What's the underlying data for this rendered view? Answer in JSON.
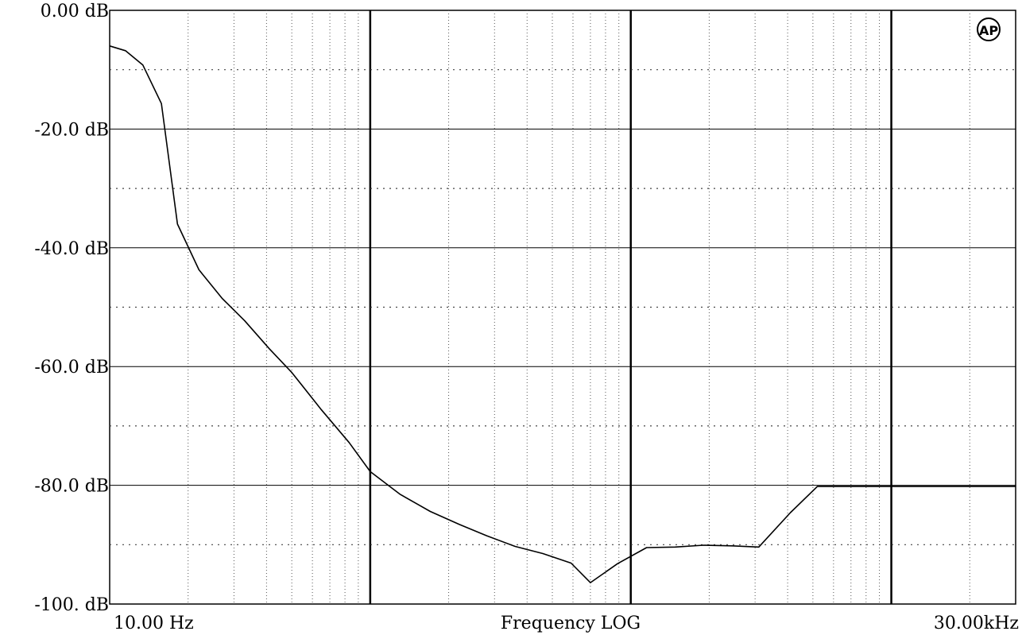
{
  "chart_data": {
    "type": "line",
    "title": "",
    "xlabel": "Frequency LOG",
    "ylabel": "",
    "x_scale": "log",
    "xlim_hz": [
      10,
      30000
    ],
    "ylim_db": [
      -100,
      0
    ],
    "x_tick_labels": [
      "10.00 Hz",
      "30.00kHz"
    ],
    "y_tick_labels": [
      "0.00 dB",
      "-20.0 dB",
      "-40.0 dB",
      "-60.0 dB",
      "-80.0 dB",
      "-100. dB"
    ],
    "y_ticks": [
      0,
      -20,
      -40,
      -60,
      -80,
      -100
    ],
    "grid": "on",
    "logo": "AP",
    "series": [
      {
        "x": [
          10,
          11.5,
          13.4,
          15.8,
          18.2,
          22,
          27,
          33,
          41,
          50,
          65,
          83,
          100,
          130,
          170,
          220,
          280,
          360,
          460,
          590,
          700,
          890,
          1150,
          1480,
          1900,
          2450,
          3100,
          4100,
          5200,
          6800,
          8600,
          11100,
          14300,
          18300,
          22000,
          26000,
          30000
        ],
        "y": [
          -6,
          -6.8,
          -9.2,
          -15.7,
          -36,
          -43.7,
          -48.5,
          -52.3,
          -57,
          -61,
          -67.3,
          -72.8,
          -77.7,
          -81.5,
          -84.4,
          -86.6,
          -88.5,
          -90.3,
          -91.5,
          -93.1,
          -96.4,
          -93.2,
          -90.5,
          -90.4,
          -90.1,
          -90.2,
          -90.4,
          -84.6,
          -80.2,
          -80.2,
          -80.2,
          -80.2,
          -80.2,
          -80.2,
          -80.2,
          -80.2,
          -80.2
        ]
      }
    ]
  }
}
